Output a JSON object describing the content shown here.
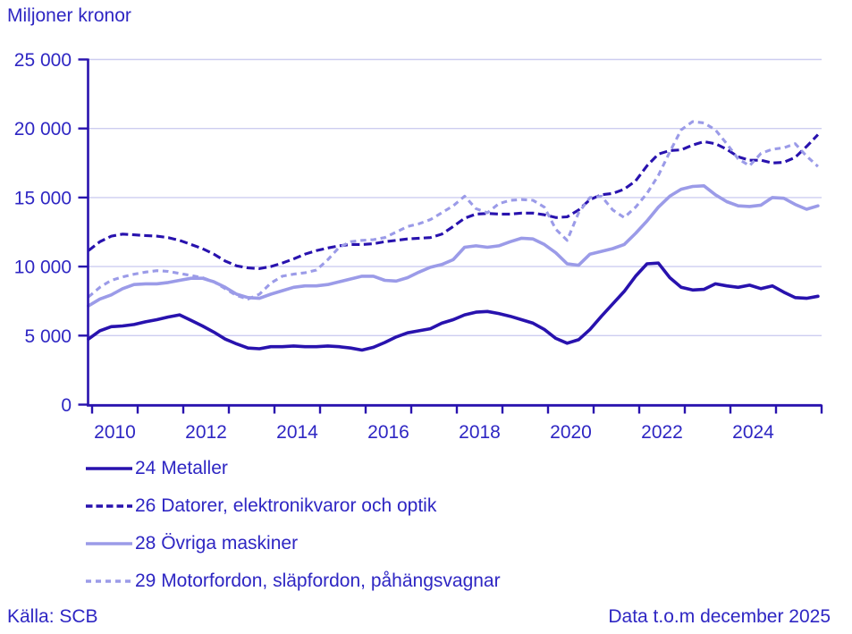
{
  "header": {
    "title": "Miljoner kronor"
  },
  "footer": {
    "source": "Källa: SCB",
    "data_note": "Data t.o.m december 2025"
  },
  "colors": {
    "text_blue": "#2e26c3",
    "dark_line": "#2812ae",
    "light_line": "#9b9be8",
    "gridline": "#cdcdf0",
    "axis": "#2812ae",
    "background": "#ffffff"
  },
  "chart_data": {
    "type": "line",
    "title": "Miljoner kronor",
    "xlabel": "",
    "ylabel": "Miljoner kronor",
    "grid": "horizontal",
    "legend_position": "bottom-left",
    "ylim": [
      0,
      25000
    ],
    "xlim": [
      2009.9,
      2026.0
    ],
    "y_ticks": [
      0,
      5000,
      10000,
      15000,
      20000,
      25000
    ],
    "y_tick_labels": [
      "0",
      "5 000",
      "10 000",
      "15 000",
      "20 000",
      "25 000"
    ],
    "x_axis_years": [
      2010,
      2011,
      2012,
      2013,
      2014,
      2015,
      2016,
      2017,
      2018,
      2019,
      2020,
      2021,
      2022,
      2023,
      2024,
      2025,
      2026
    ],
    "x_tick_labels": [
      "2010",
      "2012",
      "2014",
      "2016",
      "2018",
      "2020",
      "2022",
      "2024"
    ],
    "x_label_years": [
      2010,
      2012,
      2014,
      2016,
      2018,
      2020,
      2022,
      2024
    ],
    "x_start": 2009.92,
    "x_step": 0.25,
    "series": [
      {
        "name": "24 Metaller",
        "color": "#2812ae",
        "dash": "solid",
        "values": [
          4750,
          5350,
          5650,
          5700,
          5800,
          6000,
          6150,
          6350,
          6500,
          6100,
          5700,
          5250,
          4750,
          4400,
          4100,
          4050,
          4200,
          4200,
          4250,
          4200,
          4200,
          4250,
          4200,
          4100,
          3950,
          4150,
          4500,
          4900,
          5200,
          5350,
          5500,
          5900,
          6150,
          6500,
          6700,
          6750,
          6600,
          6400,
          6150,
          5900,
          5450,
          4800,
          4450,
          4700,
          5450,
          6400,
          7300,
          8200,
          9300,
          10200,
          10250,
          9200,
          8500,
          8300,
          8350,
          8750,
          8600,
          8500,
          8650,
          8400,
          8600,
          8150,
          7750,
          7700,
          7850
        ]
      },
      {
        "name": "26 Datorer, elektronikvaror och optik",
        "color": "#2812ae",
        "dash": "dashed",
        "values": [
          11150,
          11800,
          12200,
          12350,
          12300,
          12250,
          12200,
          12100,
          11900,
          11600,
          11300,
          10900,
          10400,
          10050,
          9900,
          9850,
          10000,
          10250,
          10550,
          10900,
          11150,
          11350,
          11500,
          11600,
          11600,
          11650,
          11800,
          11900,
          12000,
          12050,
          12100,
          12350,
          12900,
          13500,
          13800,
          13850,
          13800,
          13800,
          13870,
          13870,
          13750,
          13550,
          13600,
          14100,
          14850,
          15200,
          15300,
          15600,
          16200,
          17300,
          18150,
          18400,
          18450,
          18800,
          19050,
          18900,
          18500,
          17950,
          17700,
          17700,
          17500,
          17550,
          17900,
          18700,
          19550
        ]
      },
      {
        "name": "28 Övriga maskiner",
        "color": "#9b9be8",
        "dash": "solid",
        "values": [
          7150,
          7650,
          7950,
          8400,
          8700,
          8750,
          8750,
          8850,
          9000,
          9150,
          9150,
          8900,
          8500,
          8000,
          7750,
          7700,
          8000,
          8250,
          8500,
          8600,
          8600,
          8700,
          8900,
          9100,
          9300,
          9300,
          9000,
          8950,
          9200,
          9600,
          9950,
          10150,
          10500,
          11400,
          11500,
          11400,
          11500,
          11800,
          12050,
          12000,
          11600,
          11000,
          10200,
          10100,
          10900,
          11100,
          11300,
          11600,
          12400,
          13300,
          14300,
          15100,
          15600,
          15800,
          15850,
          15200,
          14700,
          14400,
          14350,
          14450,
          15000,
          14950,
          14500,
          14150,
          14400
        ]
      },
      {
        "name": "29 Motorfordon, släpfordon, påhängsvagnar",
        "color": "#9b9be8",
        "dash": "dashed",
        "values": [
          7800,
          8500,
          9000,
          9250,
          9450,
          9600,
          9700,
          9650,
          9500,
          9350,
          9200,
          8900,
          8400,
          7900,
          7650,
          8000,
          8800,
          9300,
          9450,
          9550,
          9750,
          10500,
          11400,
          11800,
          11900,
          11950,
          12100,
          12500,
          12900,
          13100,
          13400,
          13900,
          14400,
          15100,
          14200,
          13900,
          14550,
          14800,
          14850,
          14800,
          14300,
          12700,
          11900,
          13900,
          15000,
          15100,
          14100,
          13550,
          14300,
          15300,
          16600,
          18300,
          19900,
          20500,
          20400,
          19900,
          18900,
          17800,
          17300,
          18200,
          18500,
          18600,
          18900,
          18000,
          17250
        ]
      }
    ]
  }
}
